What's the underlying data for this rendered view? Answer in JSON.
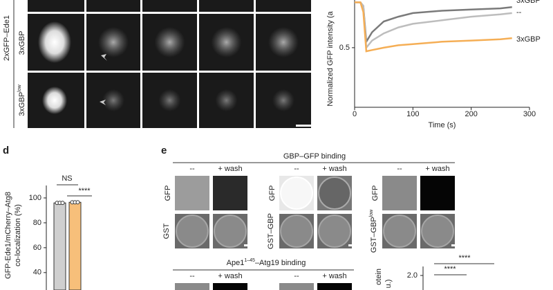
{
  "figure": {
    "panel_letters": [
      "d",
      "e"
    ],
    "microscopy": {
      "strain": "2xGFP–Ede1",
      "rows": [
        {
          "text": "3xGBP"
        },
        {
          "text": "3xGBP",
          "sup": "low"
        }
      ]
    },
    "panel_e": {
      "header": "GBP–GFP binding",
      "columns": [
        "--",
        "+ wash",
        "--",
        "+ wash",
        "--",
        "+ wash"
      ],
      "groups": [
        {
          "top": {
            "text": "GFP"
          },
          "bottom": {
            "text": "GST"
          }
        },
        {
          "top": {
            "text": "GFP"
          },
          "bottom": {
            "text": "GST–GBP"
          }
        },
        {
          "top": {
            "text": "GFP"
          },
          "bottom": {
            "text": "GST–GBP",
            "sup": "low"
          }
        }
      ],
      "header2": {
        "text": "Ape1",
        "sup": "1–45",
        "rest": "–Atg19 binding"
      },
      "columns2": [
        "--",
        "+ wash",
        "--",
        "+ wash"
      ]
    }
  },
  "chart_data": [
    {
      "type": "line",
      "ylabel": "Normalized GFP intensity (a",
      "xlabel": "Time (s)",
      "x": [
        0,
        10,
        15,
        20,
        30,
        50,
        75,
        100,
        150,
        200,
        250,
        270
      ],
      "xlim": [
        0,
        300
      ],
      "xticks": [
        0,
        100,
        200,
        300
      ],
      "ylim": [
        0,
        0.9
      ],
      "yticks": [
        0.5
      ],
      "series": [
        {
          "name": "3xGBP",
          "color": "#7a7a7a",
          "values": [
            0.88,
            0.88,
            0.85,
            0.55,
            0.63,
            0.72,
            0.76,
            0.79,
            0.81,
            0.82,
            0.83,
            0.84
          ]
        },
        {
          "name": "--",
          "color": "#bdbdbd",
          "values": [
            0.88,
            0.88,
            0.85,
            0.5,
            0.56,
            0.62,
            0.67,
            0.7,
            0.73,
            0.76,
            0.78,
            0.79
          ]
        },
        {
          "name": "3xGBP",
          "color": "#f5ae55",
          "values": [
            0.88,
            0.88,
            0.8,
            0.47,
            0.48,
            0.5,
            0.52,
            0.53,
            0.55,
            0.56,
            0.57,
            0.58
          ]
        }
      ]
    },
    {
      "type": "bar",
      "ylabel": [
        "GFP-Ede1/mCherry–Atg8",
        "co-localization (%)"
      ],
      "categories": [
        null,
        null
      ],
      "values": [
        96,
        96.5
      ],
      "colors": [
        "#cfcfcf",
        "#f7bf7a"
      ],
      "ylim": [
        26,
        110
      ],
      "yticks": [
        40,
        60,
        80,
        100
      ],
      "annotations": [
        "NS",
        "****"
      ]
    },
    {
      "type": "scatter",
      "ylabel": [
        "otein",
        "u.)"
      ],
      "yticks": [
        {
          "value": 2,
          "label": "2.0"
        }
      ],
      "annotations": [
        "****",
        "****"
      ]
    }
  ]
}
